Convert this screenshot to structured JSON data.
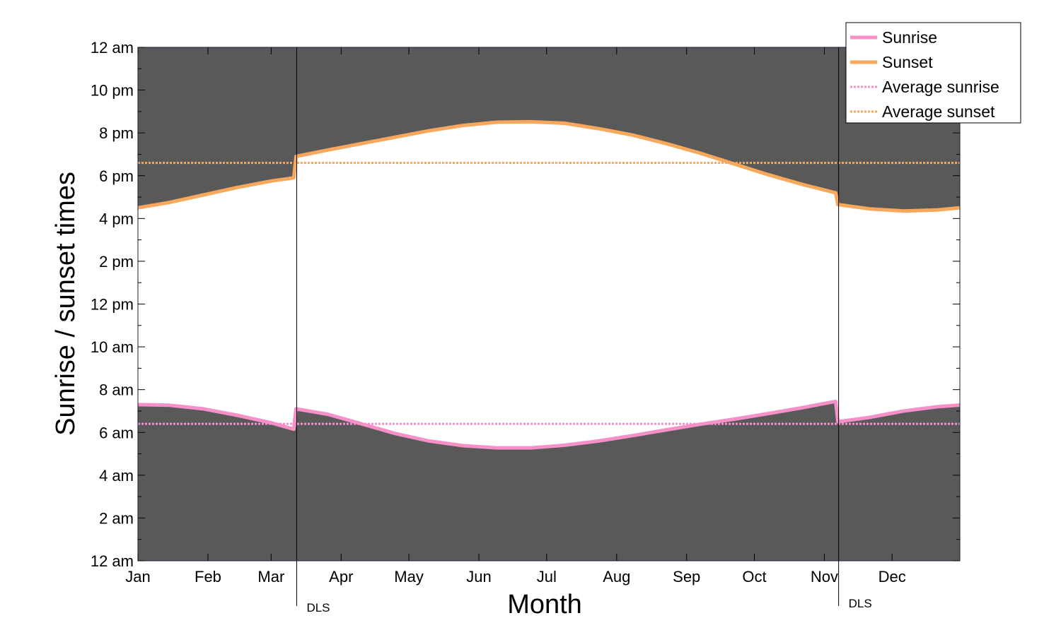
{
  "chart_data": {
    "type": "area",
    "xlabel": "Month",
    "ylabel": "Sunrise / sunset times",
    "x_domain": [
      1,
      365
    ],
    "ylim": [
      0,
      24
    ],
    "y_ticks": [
      {
        "value": 0,
        "label": "12 am"
      },
      {
        "value": 2,
        "label": "2 am"
      },
      {
        "value": 4,
        "label": "4 am"
      },
      {
        "value": 6,
        "label": "6 am"
      },
      {
        "value": 8,
        "label": "8 am"
      },
      {
        "value": 10,
        "label": "10 am"
      },
      {
        "value": 12,
        "label": "12 pm"
      },
      {
        "value": 14,
        "label": "2 pm"
      },
      {
        "value": 16,
        "label": "4 pm"
      },
      {
        "value": 18,
        "label": "6 pm"
      },
      {
        "value": 20,
        "label": "8 pm"
      },
      {
        "value": 22,
        "label": "10 pm"
      },
      {
        "value": 24,
        "label": "12 am"
      }
    ],
    "x_ticks": [
      {
        "value": 1,
        "label": "Jan"
      },
      {
        "value": 32,
        "label": "Feb"
      },
      {
        "value": 60,
        "label": "Mar"
      },
      {
        "value": 91,
        "label": "Apr"
      },
      {
        "value": 121,
        "label": "May"
      },
      {
        "value": 152,
        "label": "Jun"
      },
      {
        "value": 182,
        "label": "Jul"
      },
      {
        "value": 213,
        "label": "Aug"
      },
      {
        "value": 244,
        "label": "Sep"
      },
      {
        "value": 274,
        "label": "Oct"
      },
      {
        "value": 305,
        "label": "Nov"
      },
      {
        "value": 335,
        "label": "Dec"
      }
    ],
    "series": [
      {
        "name": "Sunrise",
        "color": "#f590c8",
        "points": [
          [
            1,
            7.3
          ],
          [
            15,
            7.27
          ],
          [
            30,
            7.1
          ],
          [
            45,
            6.8
          ],
          [
            60,
            6.45
          ],
          [
            70,
            6.15
          ],
          [
            71,
            7.1
          ],
          [
            85,
            6.85
          ],
          [
            100,
            6.4
          ],
          [
            115,
            5.95
          ],
          [
            130,
            5.6
          ],
          [
            145,
            5.38
          ],
          [
            160,
            5.28
          ],
          [
            175,
            5.28
          ],
          [
            190,
            5.4
          ],
          [
            205,
            5.6
          ],
          [
            220,
            5.85
          ],
          [
            235,
            6.12
          ],
          [
            250,
            6.38
          ],
          [
            265,
            6.62
          ],
          [
            280,
            6.88
          ],
          [
            295,
            7.15
          ],
          [
            310,
            7.45
          ],
          [
            311,
            6.5
          ],
          [
            325,
            6.7
          ],
          [
            340,
            7.0
          ],
          [
            355,
            7.2
          ],
          [
            365,
            7.28
          ]
        ]
      },
      {
        "name": "Sunset",
        "color": "#f7a85c",
        "points": [
          [
            1,
            16.5
          ],
          [
            15,
            16.75
          ],
          [
            30,
            17.1
          ],
          [
            45,
            17.45
          ],
          [
            60,
            17.75
          ],
          [
            70,
            17.9
          ],
          [
            71,
            18.9
          ],
          [
            85,
            19.2
          ],
          [
            100,
            19.5
          ],
          [
            115,
            19.8
          ],
          [
            130,
            20.1
          ],
          [
            145,
            20.35
          ],
          [
            160,
            20.5
          ],
          [
            175,
            20.52
          ],
          [
            190,
            20.45
          ],
          [
            205,
            20.2
          ],
          [
            220,
            19.9
          ],
          [
            235,
            19.5
          ],
          [
            250,
            19.05
          ],
          [
            265,
            18.55
          ],
          [
            280,
            18.05
          ],
          [
            295,
            17.6
          ],
          [
            310,
            17.2
          ],
          [
            311,
            16.65
          ],
          [
            325,
            16.45
          ],
          [
            340,
            16.35
          ],
          [
            355,
            16.4
          ],
          [
            365,
            16.5
          ]
        ]
      }
    ],
    "averages": [
      {
        "name": "Average sunrise",
        "value": 6.4,
        "color": "#f590c8"
      },
      {
        "name": "Average sunset",
        "value": 18.6,
        "color": "#f7a85c"
      }
    ],
    "annotations": [
      {
        "label": "DLS",
        "x": 71
      },
      {
        "label": "DLS",
        "x": 311
      }
    ],
    "night_color": "#595959",
    "day_color": "#ffffff",
    "legend": {
      "position": "top-right",
      "entries": [
        {
          "label": "Sunrise",
          "style": "solid",
          "color": "#f590c8"
        },
        {
          "label": "Sunset",
          "style": "solid",
          "color": "#f7a85c"
        },
        {
          "label": "Average sunrise",
          "style": "dotted",
          "color": "#f590c8"
        },
        {
          "label": "Average sunset",
          "style": "dotted",
          "color": "#f7a85c"
        }
      ]
    }
  }
}
